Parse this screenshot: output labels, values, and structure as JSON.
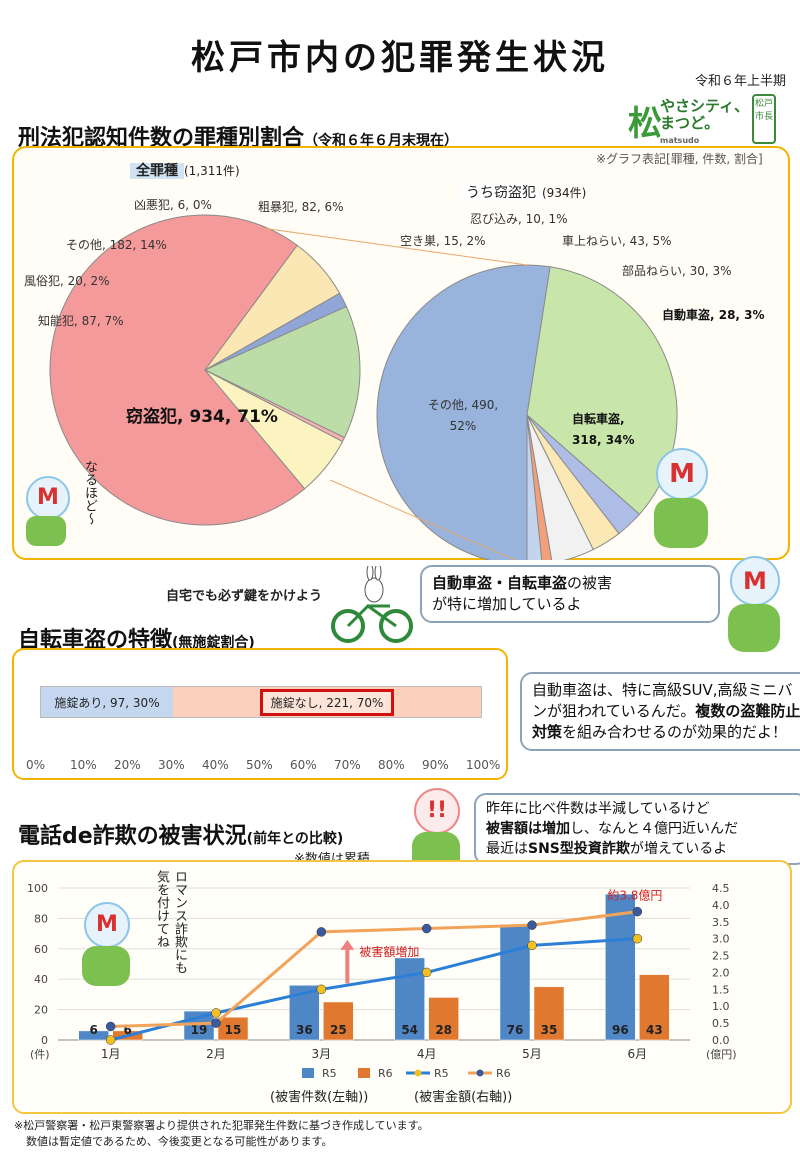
{
  "header": {
    "title": "松戸市内の犯罪発生状況",
    "period": "令和６年上半期",
    "logo_line1": "やさシティ、",
    "logo_line2": "まつど。",
    "logo_sub": "matsudo",
    "logo_badge": "松戸市長"
  },
  "section1": {
    "title": "刑法犯認知件数の罪種別割合",
    "subtitle": "（令和６年６月末現在）",
    "note": "※グラフ表記[罪種, 件数, 割合]",
    "mascot_text": "なるほど～"
  },
  "section2": {
    "title": "自転車盗の特徴",
    "subtitle": "(無施錠割合)",
    "caption": "自宅でも必ず鍵をかけよう",
    "bubble1_a": "自動車盗・自転車盗",
    "bubble1_b": "の被害",
    "bubble1_c": "が特に増加しているよ",
    "bubble2_a": "自動車盗は、特に高級SUV,高級ミニバンが狙われているんだ。",
    "bubble2_b": "複数の盗難防止対策",
    "bubble2_c": "を組み合わせるのが効果的だよ！"
  },
  "section3": {
    "title": "電話de詐欺の被害状況",
    "subtitle": "(前年との比較)",
    "note": "※数値は累積",
    "bubble_a": "昨年に比べ件数は半減しているけど",
    "bubble_b": "被害額は増加",
    "bubble_c": "し、なんと４億円近いんだ",
    "bubble_d": "最近は",
    "bubble_e": "SNS型投資詐欺",
    "bubble_f": "が増えているよ",
    "vertical_text": "ロマンス詐欺にも気を付けてね",
    "axis_caption_left": "(被害件数(左軸))",
    "axis_caption_right": "(被害金額(右軸))"
  },
  "footer": {
    "line1": "※松戸警察署・松戸東警察署より提供された犯罪発生件数に基づき作成しています。",
    "line2": "数値は暫定値であるため、今後変更となる可能性があります。"
  },
  "chart_data": [
    {
      "type": "pie",
      "title": "全罪種",
      "title_note": "(1,311件)",
      "slices": [
        {
          "name": "窃盗犯",
          "value": 934,
          "pct": "71%",
          "label": "窃盗犯, 934, 71%",
          "color": "#f59a9a"
        },
        {
          "name": "知能犯",
          "value": 87,
          "pct": "7%",
          "label": "知能犯, 87, 7%",
          "color": "#fbe7b4"
        },
        {
          "name": "風俗犯",
          "value": 20,
          "pct": "2%",
          "label": "風俗犯, 20, 2%",
          "color": "#8fa6d6"
        },
        {
          "name": "その他",
          "value": 182,
          "pct": "14%",
          "label": "その他, 182, 14%",
          "color": "#bcdca8"
        },
        {
          "name": "凶悪犯",
          "value": 6,
          "pct": "0%",
          "label": "凶悪犯, 6, 0%",
          "color": "#f7b0b0"
        },
        {
          "name": "粗暴犯",
          "value": 82,
          "pct": "6%",
          "label": "粗暴犯, 82, 6%",
          "color": "#fbf3c0"
        }
      ]
    },
    {
      "type": "pie",
      "title": "うち窃盗犯",
      "title_note": "(934件)",
      "slices": [
        {
          "name": "その他",
          "value": 490,
          "pct": "52%",
          "label1": "その他, 490,",
          "label2": "52%",
          "color": "#98b3dc"
        },
        {
          "name": "自転車盗",
          "value": 318,
          "pct": "34%",
          "label1": "自転車盗,",
          "label2": "318, 34%",
          "color": "#c9e6aa"
        },
        {
          "name": "自動車盗",
          "value": 28,
          "pct": "3%",
          "label": "自動車盗, 28, 3%",
          "color": "#aebde6"
        },
        {
          "name": "部品ねらい",
          "value": 30,
          "pct": "3%",
          "label": "部品ねらい, 30, 3%",
          "color": "#fce8b4"
        },
        {
          "name": "車上ねらい",
          "value": 43,
          "pct": "5%",
          "label": "車上ねらい, 43, 5%",
          "color": "#f1f1f1"
        },
        {
          "name": "忍び込み",
          "value": 10,
          "pct": "1%",
          "label": "忍び込み, 10, 1%",
          "color": "#f3a07a"
        },
        {
          "name": "空き巣",
          "value": 15,
          "pct": "2%",
          "label": "空き巣, 15, 2%",
          "color": "#c4d4ec"
        }
      ]
    },
    {
      "type": "bar",
      "orientation": "horizontal-stacked",
      "segments": [
        {
          "label": "施錠あり, 97, 30%",
          "value": 97,
          "pct": 30,
          "color": "#c5d7ef"
        },
        {
          "label": "施錠なし, 221, 70%",
          "value": 221,
          "pct": 70,
          "color": "#fbd0bd"
        }
      ],
      "xticks": [
        "0%",
        "10%",
        "20%",
        "30%",
        "40%",
        "50%",
        "60%",
        "70%",
        "80%",
        "90%",
        "100%"
      ],
      "xlim": [
        0,
        100
      ]
    },
    {
      "type": "bar",
      "categories": [
        "1月",
        "2月",
        "3月",
        "4月",
        "5月",
        "6月"
      ],
      "series": [
        {
          "name": "R5",
          "kind": "bar",
          "axis": "left",
          "values": [
            6,
            19,
            36,
            54,
            76,
            96
          ],
          "color": "#4f86c6"
        },
        {
          "name": "R6",
          "kind": "bar",
          "axis": "left",
          "values": [
            6,
            15,
            25,
            28,
            35,
            43
          ],
          "color": "#e0782f"
        },
        {
          "name": "R5",
          "kind": "line",
          "axis": "right",
          "values": [
            0.0,
            0.8,
            1.5,
            2.0,
            2.8,
            3.0
          ],
          "color": "#2b7fd6"
        },
        {
          "name": "R6",
          "kind": "line",
          "axis": "right",
          "values": [
            0.4,
            0.5,
            3.2,
            3.3,
            3.4,
            3.8
          ],
          "color": "#f2a35a"
        }
      ],
      "ylim_left": [
        0,
        100
      ],
      "yticks_left": [
        "0",
        "20",
        "40",
        "60",
        "80",
        "100"
      ],
      "ylim_right": [
        0,
        4.5
      ],
      "yticks_right": [
        "0.0",
        "0.5",
        "1.0",
        "1.5",
        "2.0",
        "2.5",
        "3.0",
        "3.5",
        "4.0",
        "4.5"
      ],
      "ylabel_left": "(件)",
      "ylabel_right": "(億円)",
      "annotations": {
        "increase": "被害額増加",
        "max": "約3.8億円"
      }
    }
  ]
}
